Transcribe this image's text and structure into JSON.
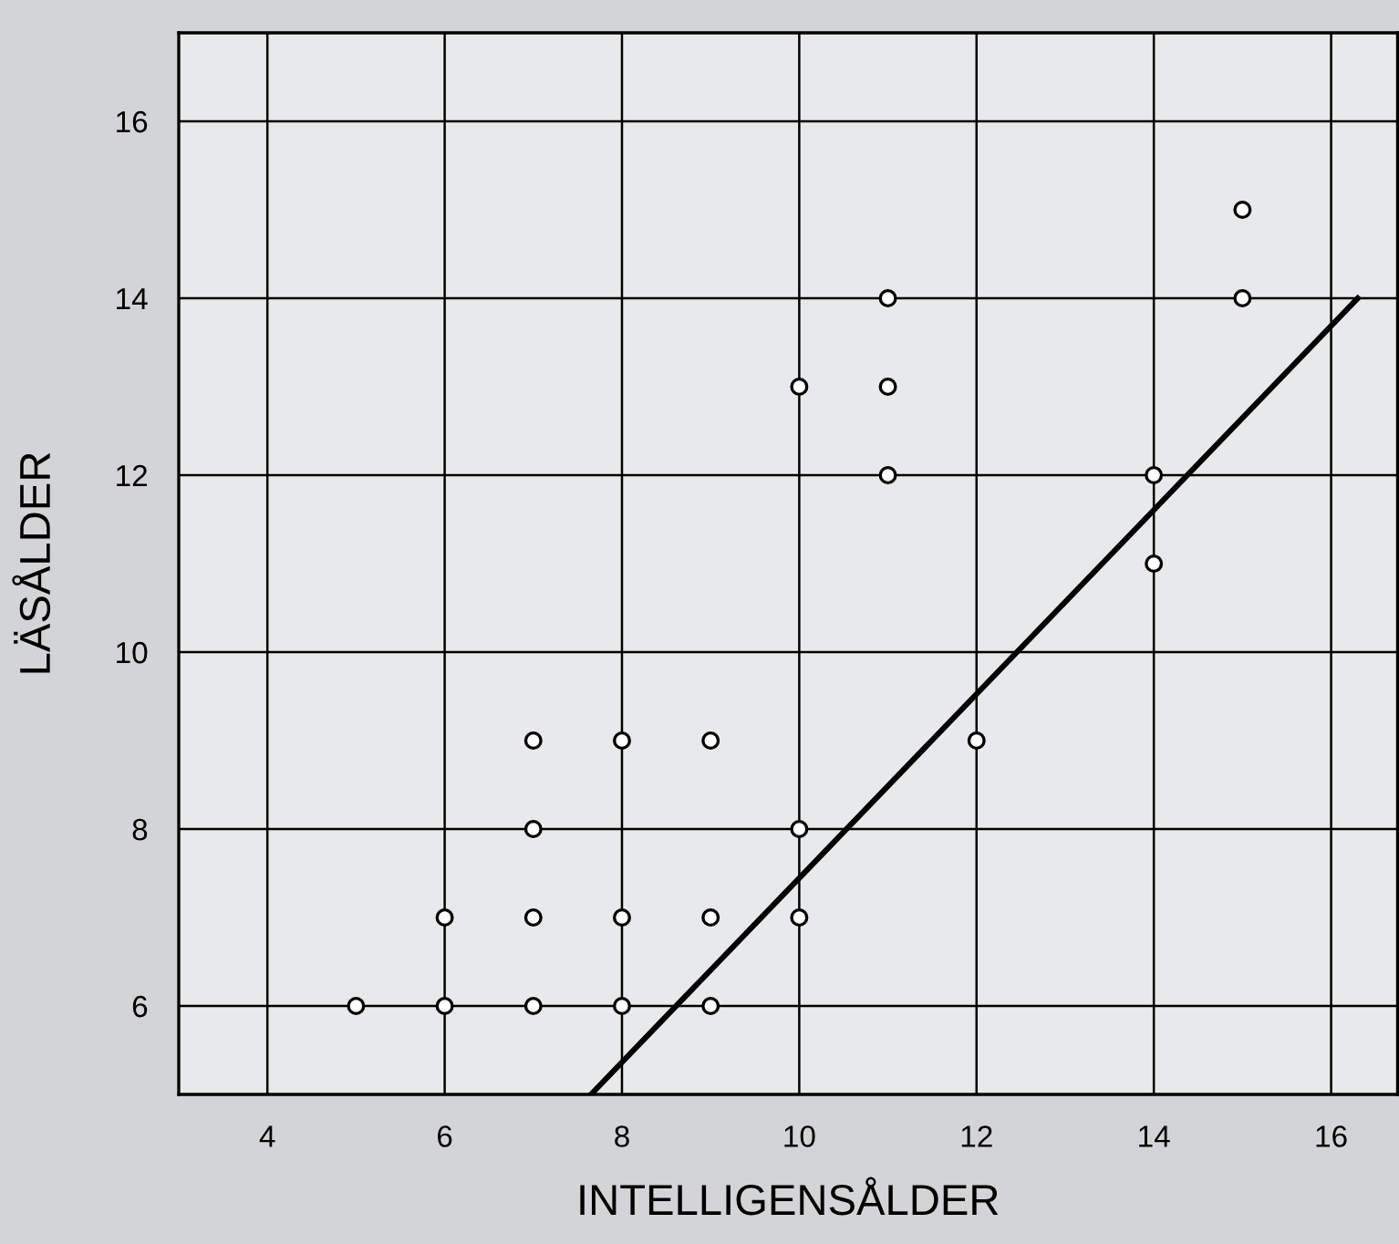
{
  "chart_data": {
    "type": "scatter",
    "xlabel": "INTELLIGENSÅLDER",
    "ylabel": "LÄSÅLDER",
    "xlim": [
      3,
      16.75
    ],
    "ylim": [
      5,
      17
    ],
    "xticks": [
      4,
      6,
      8,
      10,
      12,
      14,
      16
    ],
    "yticks": [
      6,
      8,
      10,
      12,
      14,
      16
    ],
    "grid": true,
    "series": [
      {
        "marker": "circle",
        "color": "#000000",
        "x": [
          5,
          6,
          6,
          7,
          7,
          7,
          7,
          8,
          8,
          8,
          9,
          9,
          9,
          10,
          10,
          10,
          11,
          11,
          11,
          12,
          14,
          14,
          15,
          15
        ],
        "values": [
          6,
          6,
          7,
          6,
          7,
          8,
          9,
          6,
          7,
          9,
          6,
          7,
          9,
          7,
          8,
          13,
          12,
          13,
          14,
          9,
          11,
          12,
          14,
          15
        ]
      },
      {
        "type": "line",
        "marker": "none",
        "color": "#000000",
        "x": [
          7.65,
          16.3
        ],
        "values": [
          5,
          14
        ]
      }
    ]
  }
}
